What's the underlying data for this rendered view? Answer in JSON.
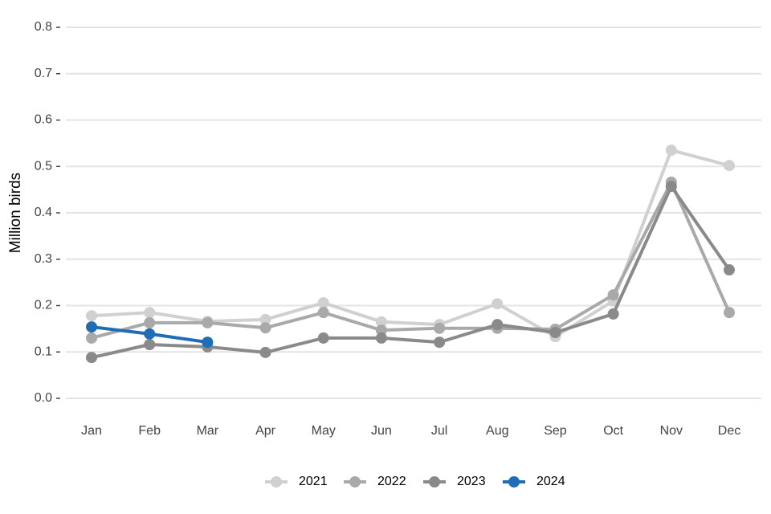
{
  "chart_data": {
    "type": "line",
    "y_label": "Million birds",
    "categories": [
      "Jan",
      "Feb",
      "Mar",
      "Apr",
      "May",
      "Jun",
      "Jul",
      "Aug",
      "Sep",
      "Oct",
      "Nov",
      "Dec"
    ],
    "series": [
      {
        "name": "2021",
        "color": "#d0d0d0",
        "values": [
          0.178,
          0.185,
          0.166,
          0.17,
          0.206,
          0.165,
          0.159,
          0.204,
          0.133,
          0.21,
          0.535,
          0.502
        ]
      },
      {
        "name": "2022",
        "color": "#a9a9a9",
        "values": [
          0.13,
          0.163,
          0.163,
          0.152,
          0.185,
          0.147,
          0.151,
          0.151,
          0.149,
          0.223,
          0.466,
          0.185
        ]
      },
      {
        "name": "2023",
        "color": "#8b8a8a",
        "values": [
          0.088,
          0.116,
          0.111,
          0.099,
          0.13,
          0.13,
          0.121,
          0.159,
          0.142,
          0.182,
          0.457,
          0.277
        ]
      },
      {
        "name": "2024",
        "color": "#1f6db5",
        "values": [
          0.154,
          0.139,
          0.121,
          null,
          null,
          null,
          null,
          null,
          null,
          null,
          null,
          null
        ]
      }
    ],
    "ylim": [
      0,
      0.8
    ],
    "yticks": [
      {
        "value": 0,
        "label": "0.0"
      },
      0.1,
      0.2,
      0.3,
      0.4,
      0.5,
      0.6,
      0.7,
      0.8
    ],
    "grid": true,
    "legend": "bottom"
  }
}
